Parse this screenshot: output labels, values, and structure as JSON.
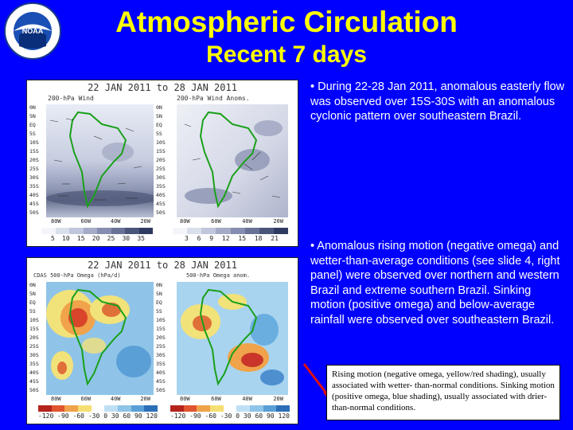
{
  "header": {
    "title": "Atmospheric Circulation",
    "subtitle": "Recent 7 days",
    "logo_text": "NOAA"
  },
  "top_figure": {
    "header": "22 JAN 2011  to  28 JAN 2011",
    "left_panel_title": "200-hPa Wind",
    "right_panel_title": "200-hPa Wind Anoms.",
    "left_colorbar_labels": [
      "5",
      "10",
      "15",
      "20",
      "25",
      "30",
      "35"
    ],
    "right_colorbar_labels": [
      "3",
      "6",
      "9",
      "12",
      "15",
      "18",
      "21"
    ]
  },
  "bottom_figure": {
    "header": "22 JAN 2011  to  28 JAN 2011",
    "left_panel_title": "CDAS 500-hPa Omega (hPa/d)",
    "right_panel_title": "500-hPa Omega anom.",
    "colorbar_labels": [
      "-120",
      "-90",
      "-60",
      "-30",
      "0",
      "30",
      "60",
      "90",
      "120"
    ]
  },
  "latitude_labels": [
    "0N",
    "5N",
    "EQ",
    "5S",
    "10S",
    "15S",
    "20S",
    "25S",
    "30S",
    "35S",
    "40S",
    "45S",
    "50S"
  ],
  "longitude_labels": [
    "80W",
    "60W",
    "40W",
    "20W"
  ],
  "bullets": [
    "• During 22-28 Jan 2011, anomalous easterly flow was observed over 15S-30S with an anomalous cyclonic  pattern over southeastern Brazil.",
    "• Anomalous rising motion (negative omega) and wetter-than-average conditions (see slide 4, right panel) were observed over northern and western Brazil and extreme southern Brazil. Sinking motion (positive omega) and below-average rainfall were observed over  southeastern Brazil."
  ],
  "note": "Rising motion (negative omega, yellow/red shading), usually associated with wetter- than-normal conditions. Sinking motion (positive omega, blue shading), usually associated with drier-than-normal conditions.",
  "colors": {
    "background": "#0000ff",
    "title": "#ffff00",
    "text": "#ffffff"
  }
}
